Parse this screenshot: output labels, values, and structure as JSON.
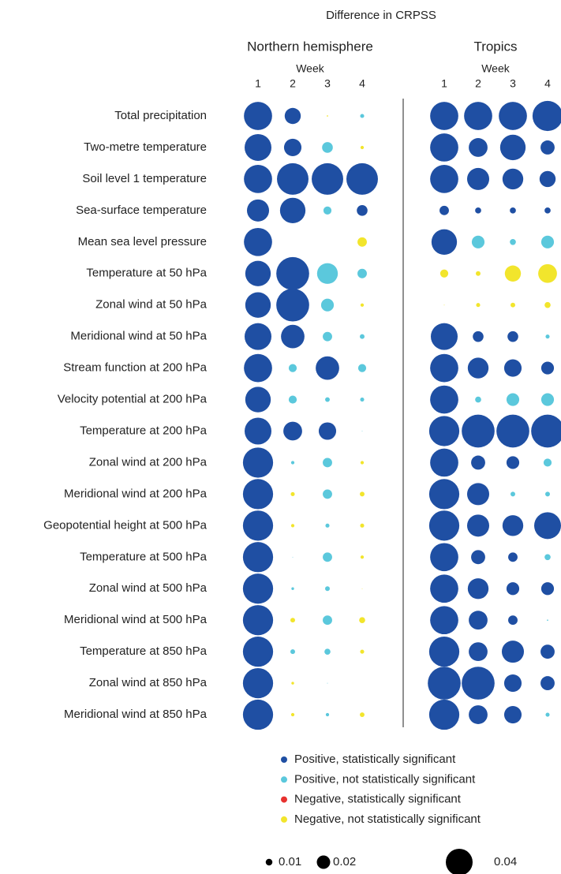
{
  "chart_data": {
    "type": "bubble",
    "title": "Difference in CRPSS",
    "xlabel": "Week",
    "x": [
      1,
      2,
      3,
      4
    ],
    "categories": [
      "Total precipitation",
      "Two-metre temperature",
      "Soil level 1 temperature",
      "Sea-surface temperature",
      "Mean sea level pressure",
      "Temperature at 50 hPa",
      "Zonal wind at 50 hPa",
      "Meridional wind at 50 hPa",
      "Stream function at 200 hPa",
      "Velocity potential at 200 hPa",
      "Temperature at 200 hPa",
      "Zonal wind at 200 hPa",
      "Meridional wind at 200 hPa",
      "Geopotential height at 500 hPa",
      "Temperature at 500 hPa",
      "Zonal wind at 500 hPa",
      "Meridional wind at 500 hPa",
      "Temperature at 850 hPa",
      "Zonal wind at 850 hPa",
      "Meridional wind at 850 hPa"
    ],
    "panels": [
      {
        "title": "Northern hemisphere",
        "values": [
          [
            0.042,
            0.024,
            -0.002,
            0.006
          ],
          [
            0.04,
            0.026,
            0.016,
            -0.005
          ],
          [
            0.042,
            0.047,
            0.047,
            0.047
          ],
          [
            0.033,
            0.038,
            0.012,
            0.016
          ],
          [
            0.042,
            null,
            null,
            -0.014
          ],
          [
            0.038,
            0.049,
            0.031,
            0.014
          ],
          [
            0.038,
            0.049,
            0.019,
            -0.005
          ],
          [
            0.04,
            0.035,
            0.014,
            0.007
          ],
          [
            0.042,
            0.012,
            0.035,
            0.012
          ],
          [
            0.038,
            0.012,
            0.007,
            0.006
          ],
          [
            0.04,
            0.028,
            0.026,
            0.001
          ],
          [
            0.045,
            0.005,
            0.014,
            -0.005
          ],
          [
            0.045,
            -0.006,
            0.014,
            -0.007
          ],
          [
            0.045,
            -0.005,
            0.006,
            -0.006
          ],
          [
            0.045,
            0.001,
            0.014,
            -0.005
          ],
          [
            0.045,
            0.004,
            0.007,
            -0.001
          ],
          [
            0.045,
            -0.007,
            0.014,
            -0.009
          ],
          [
            0.045,
            0.007,
            0.009,
            -0.006
          ],
          [
            0.045,
            -0.004,
            0.001,
            null
          ],
          [
            0.045,
            -0.005,
            0.005,
            -0.007
          ]
        ],
        "significant": [
          [
            true,
            true,
            false,
            false
          ],
          [
            true,
            true,
            false,
            false
          ],
          [
            true,
            true,
            true,
            true
          ],
          [
            true,
            true,
            false,
            true
          ],
          [
            true,
            null,
            null,
            false
          ],
          [
            true,
            true,
            false,
            false
          ],
          [
            true,
            true,
            false,
            false
          ],
          [
            true,
            true,
            false,
            false
          ],
          [
            true,
            false,
            true,
            false
          ],
          [
            true,
            false,
            false,
            false
          ],
          [
            true,
            true,
            true,
            false
          ],
          [
            true,
            false,
            false,
            false
          ],
          [
            true,
            false,
            false,
            false
          ],
          [
            true,
            false,
            false,
            false
          ],
          [
            true,
            false,
            false,
            false
          ],
          [
            true,
            false,
            false,
            false
          ],
          [
            true,
            false,
            false,
            false
          ],
          [
            true,
            false,
            false,
            false
          ],
          [
            true,
            false,
            false,
            null
          ],
          [
            true,
            false,
            false,
            false
          ]
        ]
      },
      {
        "title": "Tropics",
        "values": [
          [
            0.042,
            0.042,
            0.042,
            0.045
          ],
          [
            0.042,
            0.028,
            0.038,
            0.021
          ],
          [
            0.042,
            0.033,
            0.031,
            0.024
          ],
          [
            0.014,
            0.009,
            0.009,
            0.009
          ],
          [
            0.038,
            0.019,
            0.009,
            0.019
          ],
          [
            -0.012,
            -0.007,
            -0.024,
            -0.028
          ],
          [
            -0.001,
            -0.006,
            -0.007,
            -0.009
          ],
          [
            0.04,
            0.016,
            0.016,
            0.006
          ],
          [
            0.042,
            0.031,
            0.026,
            0.019
          ],
          [
            0.042,
            0.009,
            0.019,
            0.019
          ],
          [
            0.045,
            0.049,
            0.049,
            0.049
          ],
          [
            0.042,
            0.021,
            0.019,
            0.012
          ],
          [
            0.045,
            0.033,
            0.007,
            0.007
          ],
          [
            0.045,
            0.033,
            0.031,
            0.04
          ],
          [
            0.042,
            0.021,
            0.014,
            0.009
          ],
          [
            0.042,
            0.031,
            0.019,
            0.019
          ],
          [
            0.042,
            0.028,
            0.014,
            0.002
          ],
          [
            0.045,
            0.028,
            0.033,
            0.021
          ],
          [
            0.049,
            0.049,
            0.026,
            0.021
          ],
          [
            0.045,
            0.028,
            0.026,
            0.006
          ]
        ],
        "significant": [
          [
            true,
            true,
            true,
            true
          ],
          [
            true,
            true,
            true,
            true
          ],
          [
            true,
            true,
            true,
            true
          ],
          [
            true,
            true,
            true,
            true
          ],
          [
            true,
            false,
            false,
            false
          ],
          [
            false,
            false,
            false,
            false
          ],
          [
            false,
            false,
            false,
            false
          ],
          [
            true,
            true,
            true,
            false
          ],
          [
            true,
            true,
            true,
            true
          ],
          [
            true,
            false,
            false,
            false
          ],
          [
            true,
            true,
            true,
            true
          ],
          [
            true,
            true,
            true,
            false
          ],
          [
            true,
            true,
            false,
            false
          ],
          [
            true,
            true,
            true,
            true
          ],
          [
            true,
            true,
            true,
            false
          ],
          [
            true,
            true,
            true,
            true
          ],
          [
            true,
            true,
            true,
            false
          ],
          [
            true,
            true,
            true,
            true
          ],
          [
            true,
            true,
            true,
            true
          ],
          [
            true,
            true,
            true,
            false
          ]
        ]
      }
    ],
    "legend": [
      {
        "name": "Positive, statistically significant",
        "color": "#1f4fa3"
      },
      {
        "name": "Positive, not statistically significant",
        "color": "#5bc8dc"
      },
      {
        "name": "Negative, statistically significant",
        "color": "#e8312f"
      },
      {
        "name": "Negative, not statistically significant",
        "color": "#f2e52c"
      }
    ],
    "size_legend": [
      0.01,
      0.02,
      0.04
    ]
  }
}
